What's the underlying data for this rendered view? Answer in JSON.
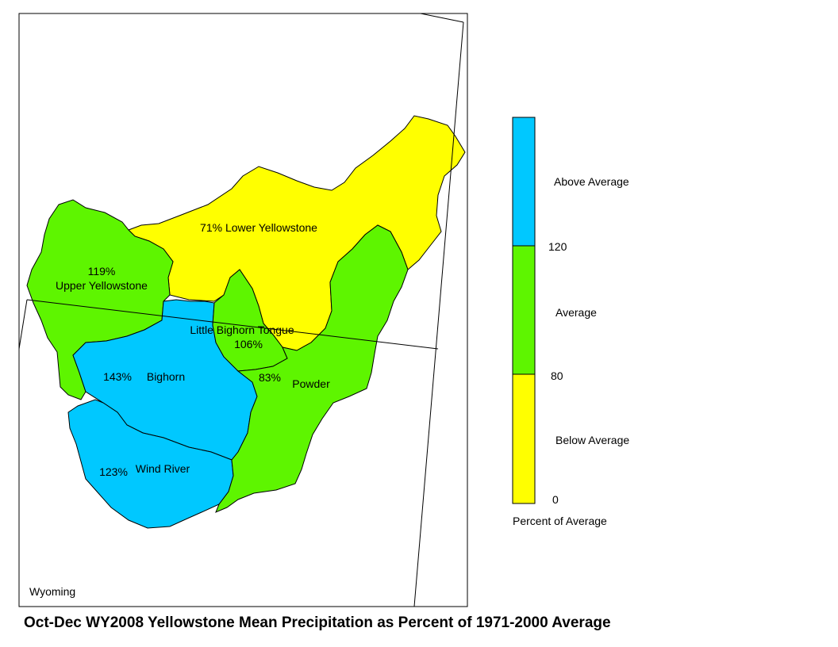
{
  "title": "Oct-Dec WY2008 Yellowstone Mean Precipitation as Percent of 1971-2000 Average",
  "state_label": "Wyoming",
  "colors": {
    "above": "#00c8ff",
    "average": "#5ef500",
    "below": "#ffff00"
  },
  "basins": [
    {
      "name": "Lower Yellowstone",
      "pct": "71%",
      "category": "below"
    },
    {
      "name": "Upper Yellowstone",
      "pct": "119%",
      "category": "average"
    },
    {
      "name": "Little Bighorn Tongue",
      "pct": "106%",
      "category": "average"
    },
    {
      "name": "Powder",
      "pct": "83%",
      "category": "average"
    },
    {
      "name": "Bighorn",
      "pct": "143%",
      "category": "above"
    },
    {
      "name": "Wind River",
      "pct": "123%",
      "category": "above"
    }
  ],
  "legend": {
    "title": "Percent of Average",
    "categories": [
      {
        "label": "Above Average",
        "color": "#00c8ff"
      },
      {
        "label": "Average",
        "color": "#5ef500"
      },
      {
        "label": "Below Average",
        "color": "#ffff00"
      }
    ],
    "breaks": [
      "120",
      "80",
      "0"
    ]
  }
}
